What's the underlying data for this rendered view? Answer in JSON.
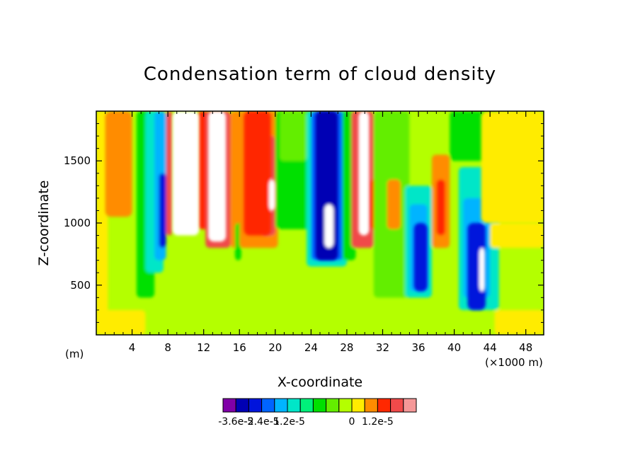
{
  "chart_data": {
    "type": "heatmap",
    "title": "Condensation term of cloud density",
    "xlabel": "X-coordinate",
    "ylabel": "Z-coordinate",
    "x_unit_left": "(m)",
    "x_unit_right": "(×1000 m)",
    "xlim": [
      0,
      50
    ],
    "ylim": [
      100,
      1900
    ],
    "x_ticks": [
      4,
      8,
      12,
      16,
      20,
      24,
      28,
      32,
      36,
      40,
      44,
      48
    ],
    "x_tick_labels": [
      "4",
      "8",
      "12",
      "16",
      "20",
      "24",
      "28",
      "32",
      "36",
      "40",
      "44",
      "48"
    ],
    "y_ticks": [
      500,
      1000,
      1500
    ],
    "y_tick_labels": [
      "500",
      "1000",
      "1500"
    ],
    "colorbar": {
      "colors": [
        "#8000a8",
        "#0000b4",
        "#0014dc",
        "#0064ff",
        "#00b4ff",
        "#00e6c8",
        "#00f07a",
        "#00e000",
        "#64ee00",
        "#b4ff00",
        "#ffec00",
        "#ff8c00",
        "#ff2800",
        "#f04a4a",
        "#f59898"
      ],
      "tick_labels": [
        "-3.6e-5",
        "-2.4e-5",
        "-1.2e-5",
        "0",
        "1.2e-5"
      ],
      "tick_levels": [
        -3.6e-05,
        -2.4e-05,
        -1.2e-05,
        0,
        1.2e-05
      ]
    },
    "background_level_color": "#b4ff00",
    "features": [
      {
        "x": [
          1,
          4
        ],
        "z": [
          1050,
          1900
        ],
        "color": "#ff8c00"
      },
      {
        "x": [
          8.5,
          11.5
        ],
        "z": [
          900,
          1900
        ],
        "color": "#ffffff"
      },
      {
        "x": [
          12.5,
          14.5
        ],
        "z": [
          850,
          1900
        ],
        "color": "#ffffff"
      },
      {
        "x": [
          16.5,
          19.5
        ],
        "z": [
          900,
          1900
        ],
        "color": "#ff2800"
      },
      {
        "x": [
          19.3,
          20
        ],
        "z": [
          1100,
          1350
        ],
        "color": "#ffffff"
      },
      {
        "x": [
          24.5,
          27
        ],
        "z": [
          700,
          1900
        ],
        "color": "#0000b4"
      },
      {
        "x": [
          25.5,
          26.5
        ],
        "z": [
          800,
          1150
        ],
        "color": "#ffffff"
      },
      {
        "x": [
          29.3,
          30.5
        ],
        "z": [
          900,
          1900
        ],
        "color": "#ffffff"
      },
      {
        "x": [
          35.5,
          37
        ],
        "z": [
          450,
          1000
        ],
        "color": "#0014dc"
      },
      {
        "x": [
          41.5,
          43.5
        ],
        "z": [
          300,
          1000
        ],
        "color": "#0014dc"
      },
      {
        "x": [
          42.8,
          43.4
        ],
        "z": [
          450,
          800
        ],
        "color": "#ffffff"
      },
      {
        "x": [
          43,
          50
        ],
        "z": [
          1000,
          1900
        ],
        "color": "#ffec00"
      }
    ]
  }
}
